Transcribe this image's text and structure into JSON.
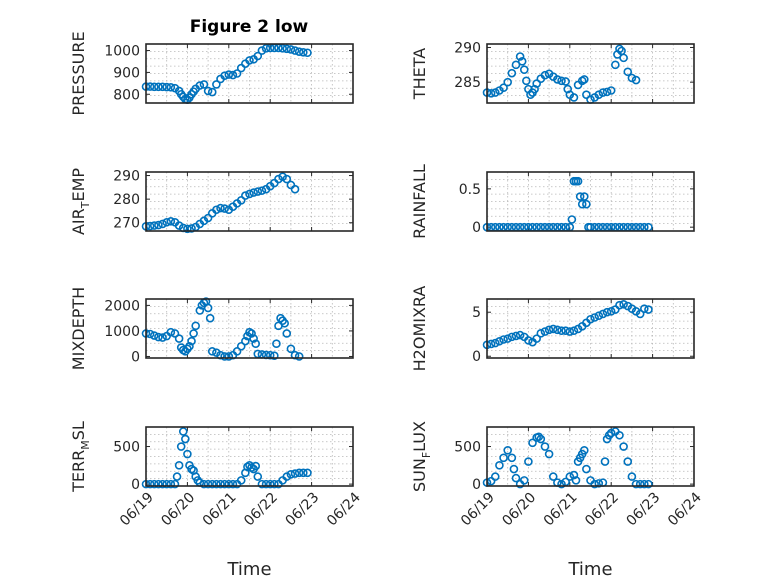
{
  "figure_title": "Figure 2 low",
  "colors": {
    "marker": "#0072bd",
    "axes": "#262626",
    "grid": "#b8b8b8"
  },
  "chart_data": [
    {
      "type": "scatter",
      "name": "pressure",
      "ylabel_parts": [
        "PRESSURE"
      ],
      "ylim": [
        760,
        1030
      ],
      "yticks": [
        800,
        900,
        1000
      ],
      "xlim": [
        0,
        5
      ],
      "xticks": [],
      "xlabel": "",
      "grid": true,
      "x": [
        0.0,
        0.1,
        0.2,
        0.3,
        0.4,
        0.5,
        0.6,
        0.7,
        0.8,
        0.85,
        0.9,
        0.95,
        1.0,
        1.05,
        1.1,
        1.15,
        1.2,
        1.3,
        1.4,
        1.5,
        1.6,
        1.7,
        1.8,
        1.9,
        2.0,
        2.1,
        2.2,
        2.3,
        2.4,
        2.5,
        2.6,
        2.7,
        2.8,
        2.9,
        3.0,
        3.1,
        3.2,
        3.3,
        3.4,
        3.5,
        3.6,
        3.7,
        3.8,
        3.9
      ],
      "y": [
        835,
        835,
        834,
        834,
        834,
        833,
        832,
        828,
        815,
        800,
        788,
        778,
        775,
        785,
        800,
        812,
        825,
        840,
        845,
        815,
        810,
        845,
        870,
        885,
        890,
        888,
        895,
        920,
        940,
        955,
        960,
        975,
        1000,
        1010,
        1012,
        1012,
        1012,
        1010,
        1008,
        1005,
        1000,
        995,
        992,
        990
      ]
    },
    {
      "type": "scatter",
      "name": "theta",
      "ylabel_parts": [
        "THETA"
      ],
      "ylim": [
        282,
        290.5
      ],
      "yticks": [
        285,
        290
      ],
      "xlim": [
        0,
        5
      ],
      "xticks": [],
      "xlabel": "",
      "grid": true,
      "x": [
        0.0,
        0.1,
        0.2,
        0.3,
        0.4,
        0.5,
        0.6,
        0.7,
        0.8,
        0.85,
        0.9,
        0.95,
        1.0,
        1.05,
        1.1,
        1.15,
        1.2,
        1.3,
        1.4,
        1.5,
        1.6,
        1.7,
        1.8,
        1.9,
        1.95,
        2.0,
        2.1,
        2.2,
        2.3,
        2.35,
        2.4,
        2.5,
        2.6,
        2.7,
        2.8,
        2.9,
        3.0,
        3.1,
        3.15,
        3.2,
        3.25,
        3.3,
        3.4,
        3.5,
        3.6
      ],
      "y": [
        283.5,
        283.4,
        283.5,
        283.8,
        284.2,
        285,
        286.3,
        287.5,
        288.7,
        288,
        286.8,
        285.2,
        284,
        283.2,
        283.5,
        284,
        284.8,
        285.5,
        286,
        286.2,
        285.8,
        285.4,
        285.2,
        285.1,
        284,
        283.2,
        282.8,
        284.6,
        285.2,
        285.4,
        283.2,
        282.5,
        282.8,
        283.2,
        283.5,
        283.6,
        283.8,
        287.5,
        289,
        289.8,
        289.5,
        288.5,
        286.5,
        285.6,
        285.3
      ]
    },
    {
      "type": "scatter",
      "name": "air-temp",
      "ylabel_parts": [
        "AIR",
        "T",
        "EMP"
      ],
      "ylim": [
        266.5,
        291.5
      ],
      "yticks": [
        270,
        280,
        290
      ],
      "xlim": [
        0,
        5
      ],
      "xticks": [],
      "xlabel": "",
      "grid": true,
      "x": [
        0.0,
        0.1,
        0.2,
        0.3,
        0.4,
        0.5,
        0.6,
        0.7,
        0.8,
        0.9,
        1.0,
        1.1,
        1.2,
        1.3,
        1.4,
        1.5,
        1.6,
        1.7,
        1.8,
        1.9,
        2.0,
        2.1,
        2.2,
        2.3,
        2.4,
        2.5,
        2.6,
        2.7,
        2.8,
        2.9,
        3.0,
        3.1,
        3.2,
        3.3,
        3.4,
        3.5,
        3.6
      ],
      "y": [
        268.5,
        268.6,
        268.8,
        269,
        269.5,
        270.2,
        270.6,
        270.2,
        268.8,
        267.8,
        267.4,
        267.6,
        268.2,
        269.5,
        270.8,
        272,
        274,
        275.5,
        276.2,
        276,
        275.5,
        276.8,
        278.2,
        279.5,
        281.5,
        282.2,
        282.8,
        283.2,
        283.6,
        284.2,
        285.5,
        286.8,
        288.5,
        289.5,
        288.5,
        286,
        284.2
      ]
    },
    {
      "type": "scatter",
      "name": "rainfall",
      "ylabel_parts": [
        "RAINFALL"
      ],
      "ylim": [
        -0.05,
        0.72
      ],
      "yticks": [
        0,
        0.5
      ],
      "xlim": [
        0,
        5
      ],
      "xticks": [],
      "xlabel": "",
      "grid": true,
      "x": [
        0.0,
        0.1,
        0.2,
        0.3,
        0.4,
        0.5,
        0.6,
        0.7,
        0.8,
        0.9,
        1.0,
        1.1,
        1.2,
        1.3,
        1.4,
        1.5,
        1.6,
        1.7,
        1.8,
        1.9,
        2.0,
        2.05,
        2.1,
        2.15,
        2.2,
        2.25,
        2.3,
        2.35,
        2.4,
        2.45,
        2.5,
        2.6,
        2.7,
        2.8,
        2.9,
        3.0,
        3.1,
        3.2,
        3.3,
        3.4,
        3.5,
        3.6,
        3.7,
        3.8,
        3.9
      ],
      "y": [
        0,
        0,
        0,
        0,
        0,
        0,
        0,
        0,
        0,
        0,
        0,
        0,
        0,
        0,
        0,
        0,
        0,
        0,
        0,
        0,
        0,
        0.1,
        0.6,
        0.6,
        0.6,
        0.4,
        0.3,
        0.4,
        0.3,
        0,
        0,
        0,
        0,
        0,
        0,
        0,
        0,
        0,
        0,
        0,
        0,
        0,
        0,
        0,
        0
      ]
    },
    {
      "type": "scatter",
      "name": "mixdepth",
      "ylabel_parts": [
        "MIXDEPTH"
      ],
      "ylim": [
        -60,
        2250
      ],
      "yticks": [
        0,
        1000,
        2000
      ],
      "xlim": [
        0,
        5
      ],
      "xticks": [],
      "xlabel": "",
      "grid": true,
      "x": [
        0.0,
        0.1,
        0.2,
        0.3,
        0.4,
        0.5,
        0.6,
        0.7,
        0.8,
        0.85,
        0.9,
        0.95,
        1.0,
        1.05,
        1.1,
        1.15,
        1.2,
        1.3,
        1.35,
        1.4,
        1.45,
        1.5,
        1.55,
        1.6,
        1.7,
        1.8,
        1.9,
        2.0,
        2.1,
        2.2,
        2.3,
        2.4,
        2.45,
        2.5,
        2.55,
        2.6,
        2.65,
        2.7,
        2.8,
        2.9,
        3.0,
        3.1,
        3.15,
        3.2,
        3.25,
        3.3,
        3.35,
        3.4,
        3.5,
        3.6,
        3.7
      ],
      "y": [
        900,
        880,
        820,
        760,
        740,
        800,
        950,
        900,
        700,
        350,
        250,
        200,
        300,
        400,
        600,
        900,
        1200,
        1800,
        2000,
        2100,
        2150,
        1900,
        1500,
        200,
        150,
        50,
        0,
        0,
        50,
        200,
        400,
        600,
        800,
        950,
        900,
        700,
        500,
        100,
        80,
        60,
        50,
        30,
        500,
        1200,
        1500,
        1400,
        1300,
        900,
        300,
        50,
        0
      ]
    },
    {
      "type": "scatter",
      "name": "h2o-mixing-ratio",
      "ylabel_parts": [
        "H2OMIXRA"
      ],
      "ylim": [
        -0.2,
        6.5
      ],
      "yticks": [
        0,
        5
      ],
      "xlim": [
        0,
        5
      ],
      "xticks": [],
      "xlabel": "",
      "grid": true,
      "x": [
        0.0,
        0.1,
        0.2,
        0.3,
        0.4,
        0.5,
        0.6,
        0.7,
        0.8,
        0.9,
        1.0,
        1.1,
        1.2,
        1.3,
        1.4,
        1.5,
        1.6,
        1.7,
        1.8,
        1.9,
        2.0,
        2.1,
        2.2,
        2.3,
        2.4,
        2.5,
        2.6,
        2.7,
        2.8,
        2.9,
        3.0,
        3.1,
        3.2,
        3.3,
        3.4,
        3.5,
        3.6,
        3.7,
        3.8,
        3.9
      ],
      "y": [
        1.3,
        1.4,
        1.5,
        1.7,
        1.9,
        2.0,
        2.2,
        2.3,
        2.4,
        2.2,
        1.8,
        1.6,
        2.0,
        2.6,
        2.8,
        3.0,
        3.1,
        3.0,
        2.9,
        2.9,
        2.8,
        2.9,
        3.1,
        3.4,
        3.8,
        4.2,
        4.4,
        4.6,
        4.8,
        5.0,
        5.1,
        5.3,
        5.8,
        5.9,
        5.7,
        5.4,
        5.1,
        4.8,
        5.4,
        5.3
      ]
    },
    {
      "type": "scatter",
      "name": "terrain-msl",
      "ylabel_parts": [
        "TERR",
        "M",
        "SL"
      ],
      "ylim": [
        -25,
        760
      ],
      "yticks": [
        0,
        500
      ],
      "xlim": [
        0,
        5
      ],
      "xticks": [
        "06/19",
        "06/20",
        "06/21",
        "06/22",
        "06/23",
        "06/24"
      ],
      "xlabel": "Time",
      "grid": true,
      "x": [
        0.0,
        0.1,
        0.2,
        0.3,
        0.4,
        0.5,
        0.6,
        0.7,
        0.75,
        0.8,
        0.85,
        0.9,
        0.95,
        1.0,
        1.05,
        1.1,
        1.15,
        1.2,
        1.25,
        1.3,
        1.4,
        1.5,
        1.6,
        1.7,
        1.8,
        1.9,
        2.0,
        2.1,
        2.2,
        2.3,
        2.4,
        2.45,
        2.5,
        2.55,
        2.6,
        2.65,
        2.7,
        2.8,
        2.9,
        3.0,
        3.1,
        3.2,
        3.3,
        3.4,
        3.5,
        3.6,
        3.7,
        3.8,
        3.9
      ],
      "y": [
        0,
        0,
        0,
        0,
        0,
        0,
        0,
        0,
        100,
        250,
        500,
        700,
        600,
        400,
        250,
        200,
        180,
        100,
        50,
        20,
        0,
        0,
        0,
        0,
        0,
        0,
        0,
        0,
        0,
        50,
        150,
        230,
        250,
        220,
        200,
        240,
        100,
        0,
        0,
        0,
        0,
        0,
        50,
        100,
        130,
        140,
        150,
        150,
        150
      ]
    },
    {
      "type": "scatter",
      "name": "sun-flux",
      "ylabel_parts": [
        "SUN",
        "F",
        "LUX"
      ],
      "ylim": [
        -25,
        760
      ],
      "yticks": [
        0,
        500
      ],
      "xlim": [
        0,
        5
      ],
      "xticks": [
        "06/19",
        "06/20",
        "06/21",
        "06/22",
        "06/23",
        "06/24"
      ],
      "xlabel": "Time",
      "grid": true,
      "x": [
        0.0,
        0.1,
        0.2,
        0.3,
        0.4,
        0.5,
        0.6,
        0.65,
        0.7,
        0.8,
        0.9,
        1.0,
        1.1,
        1.2,
        1.25,
        1.3,
        1.4,
        1.5,
        1.6,
        1.7,
        1.8,
        1.9,
        2.0,
        2.1,
        2.15,
        2.2,
        2.25,
        2.3,
        2.35,
        2.4,
        2.5,
        2.6,
        2.7,
        2.8,
        2.85,
        2.9,
        2.95,
        3.0,
        3.1,
        3.2,
        3.3,
        3.4,
        3.5,
        3.6,
        3.7,
        3.8,
        3.9
      ],
      "y": [
        20,
        40,
        100,
        250,
        350,
        450,
        350,
        200,
        80,
        0,
        50,
        300,
        550,
        620,
        630,
        600,
        500,
        400,
        100,
        20,
        0,
        30,
        100,
        120,
        50,
        300,
        350,
        400,
        450,
        200,
        50,
        0,
        10,
        20,
        300,
        600,
        650,
        680,
        700,
        650,
        500,
        300,
        100,
        0,
        0,
        0,
        0
      ]
    }
  ]
}
